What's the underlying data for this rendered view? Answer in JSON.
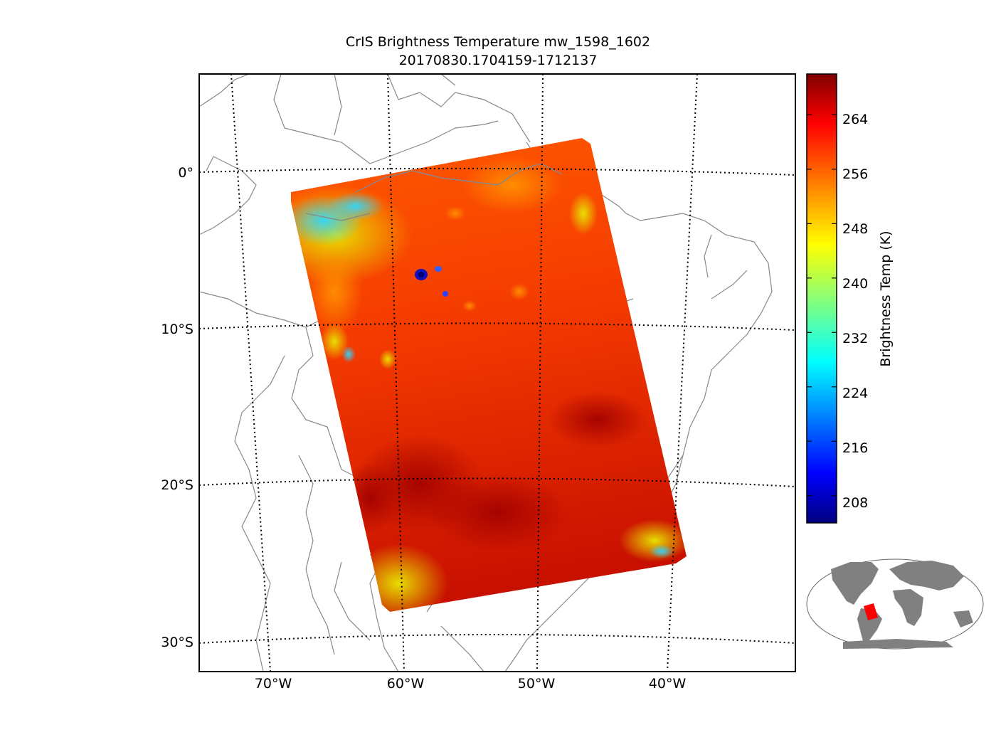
{
  "title": {
    "line1": "CrIS Brightness Temperature mw_1598_1602",
    "line2": "20170830.1704159-1712137"
  },
  "map": {
    "lat_labels": [
      "0°",
      "10°S",
      "20°S",
      "30°S"
    ],
    "lon_labels": [
      "70°W",
      "60°W",
      "50°W",
      "40°W"
    ],
    "gridline_style": "dotted",
    "coastline_color": "#888888",
    "swath_area": "central Brazil / Bolivia / Paraguay"
  },
  "colorbar": {
    "label": "Brightness Temp (K)",
    "colormap": "jet",
    "ticks": [
      "264",
      "256",
      "248",
      "240",
      "232",
      "224",
      "216",
      "208"
    ],
    "range": [
      204,
      270
    ]
  },
  "inset": {
    "land_color": "#808080",
    "highlight_color": "#ff0000",
    "projection": "global robinson"
  }
}
